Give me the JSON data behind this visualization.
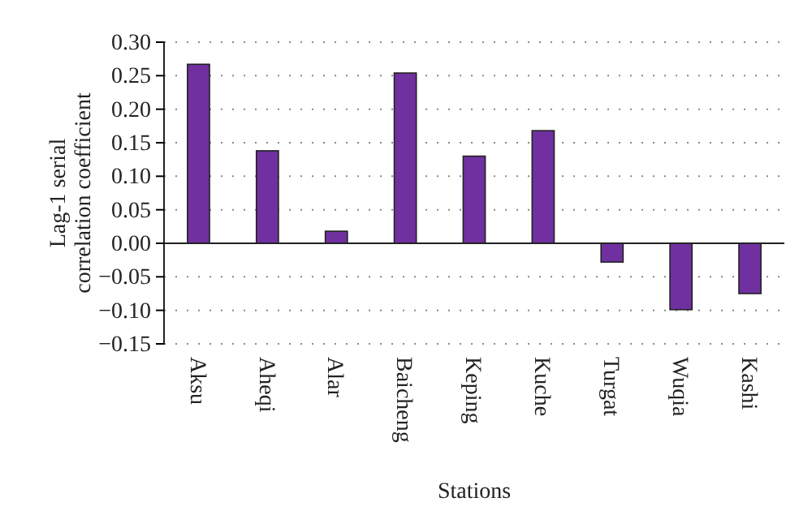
{
  "chart_data": {
    "type": "bar",
    "xlabel": "Stations",
    "ylabel": "Lag-1 serial correlation coefficient",
    "categories": [
      "Aksu",
      "Aheqi",
      "Alar",
      "Baicheng",
      "Keping",
      "Kuche",
      "Turgat",
      "Wuqia",
      "Kashi"
    ],
    "values": [
      0.267,
      0.138,
      0.018,
      0.254,
      0.13,
      0.168,
      -0.028,
      -0.099,
      -0.075
    ],
    "color": "#7030a0",
    "ylim": [
      -0.15,
      0.3
    ],
    "yticks": [
      {
        "value": -0.15,
        "label": "−0.15"
      },
      {
        "value": -0.1,
        "label": "−0.10"
      },
      {
        "value": -0.05,
        "label": "−0.05"
      },
      "0.00",
      "0.05",
      "0.10",
      "0.15",
      "0.20",
      "0.25",
      "0.30"
    ],
    "grid": "y"
  }
}
